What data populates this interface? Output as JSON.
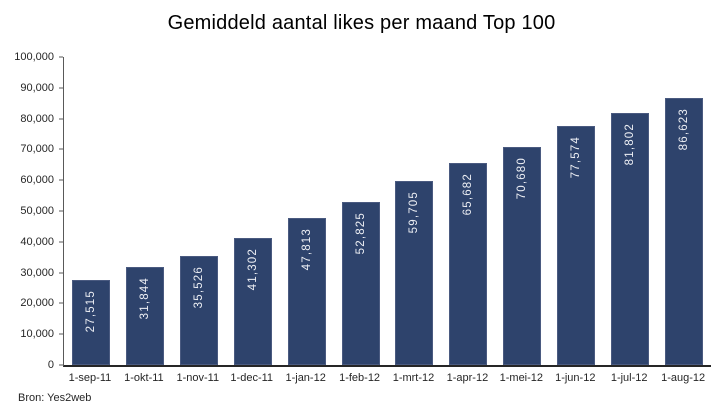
{
  "chart_data": {
    "type": "bar",
    "title": "Gemiddeld aantal likes per maand Top 100",
    "categories": [
      "1-sep-11",
      "1-okt-11",
      "1-nov-11",
      "1-dec-11",
      "1-jan-12",
      "1-feb-12",
      "1-mrt-12",
      "1-apr-12",
      "1-mei-12",
      "1-jun-12",
      "1-jul-12",
      "1-aug-12"
    ],
    "values": [
      27515,
      31844,
      35526,
      41302,
      47813,
      52825,
      59705,
      65682,
      70680,
      77574,
      81802,
      86623
    ],
    "value_labels": [
      "27,515",
      "31,844",
      "35,526",
      "41,302",
      "47,813",
      "52,825",
      "59,705",
      "65,682",
      "70,680",
      "77,574",
      "81,802",
      "86,623"
    ],
    "xlabel": "",
    "ylabel": "",
    "ylim": [
      0,
      100000
    ],
    "ytick_step": 10000,
    "ytick_labels": [
      "0",
      "10,000",
      "20,000",
      "30,000",
      "40,000",
      "50,000",
      "60,000",
      "70,000",
      "80,000",
      "90,000",
      "100,000"
    ],
    "grid": false,
    "legend_position": "none",
    "bar_color": "#2E436C",
    "bar_border_color": "#4A5A80",
    "value_label_color": "#EDEFF4",
    "axis_color": "#595959",
    "text_color": "#262626",
    "source": "Bron: Yes2web"
  }
}
